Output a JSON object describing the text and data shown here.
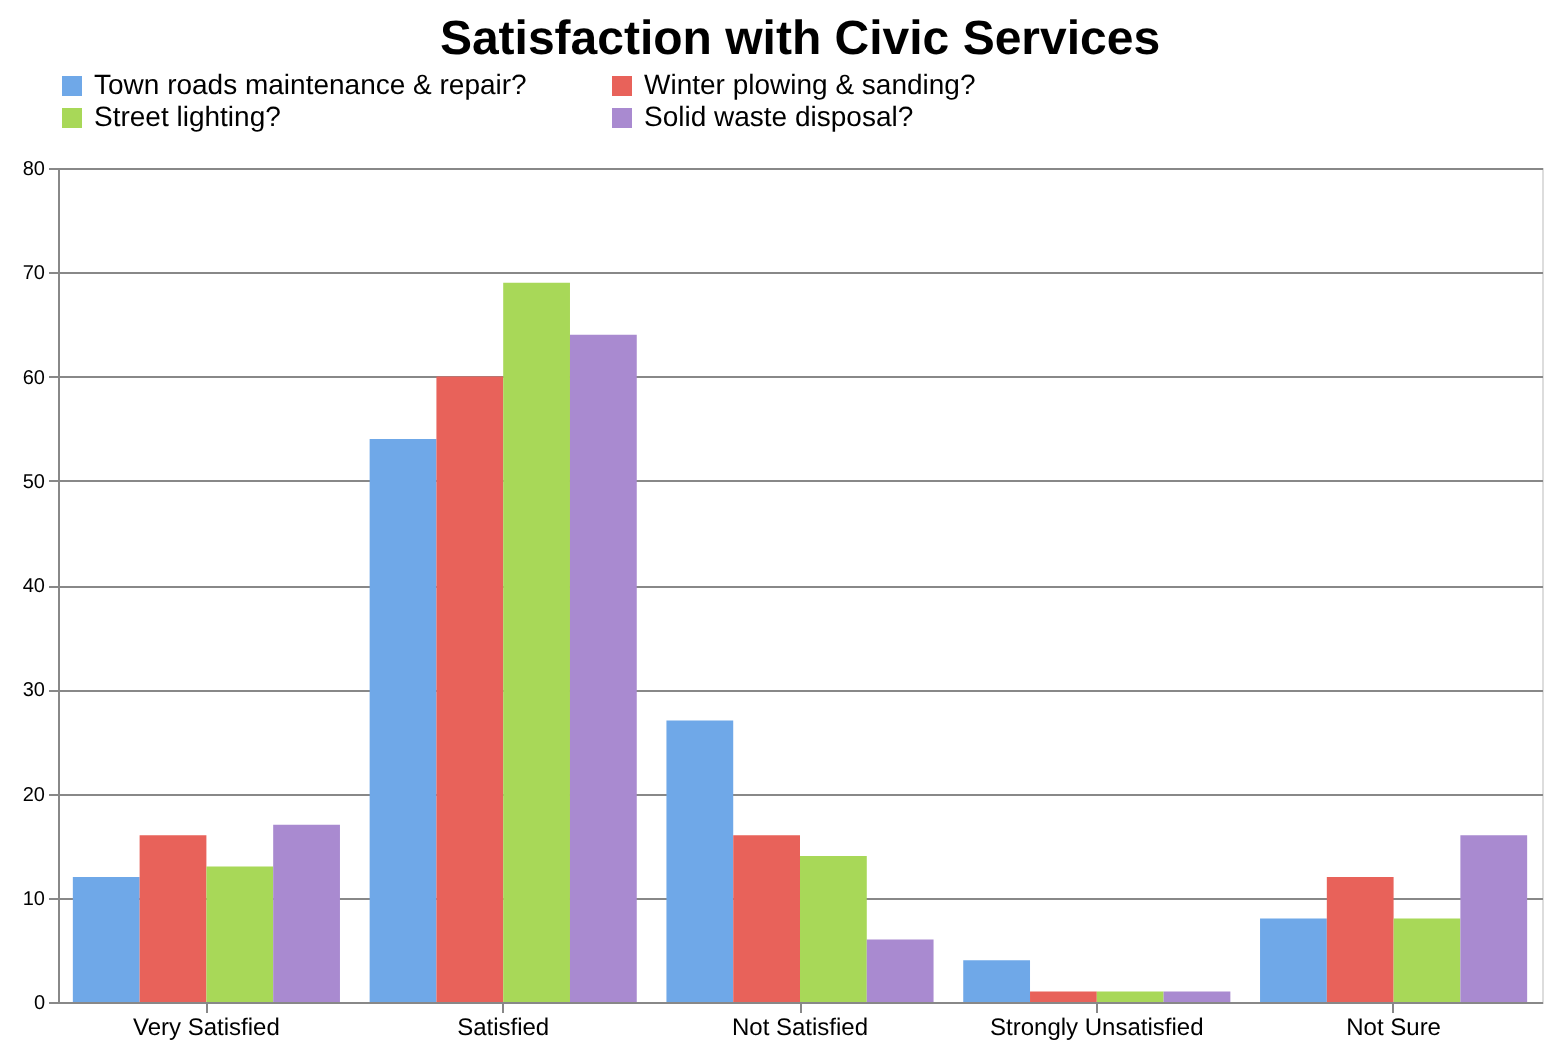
{
  "chart_data": {
    "type": "bar",
    "title": "Satisfaction with Civic Services",
    "categories": [
      "Very Satisfied",
      "Satisfied",
      "Not Satisfied",
      "Strongly Unsatisfied",
      "Not Sure"
    ],
    "series": [
      {
        "name": "Town roads maintenance & repair?",
        "color": "#6fa8e8",
        "values": [
          12,
          54,
          27,
          4,
          8
        ]
      },
      {
        "name": "Winter plowing & sanding?",
        "color": "#e8625a",
        "values": [
          16,
          60,
          16,
          1,
          12
        ]
      },
      {
        "name": "Street lighting?",
        "color": "#a8d858",
        "values": [
          13,
          69,
          14,
          1,
          8
        ]
      },
      {
        "name": "Solid waste disposal?",
        "color": "#a98ad0",
        "values": [
          17,
          64,
          6,
          1,
          16
        ]
      }
    ],
    "ylim": [
      0,
      80
    ],
    "yticks": [
      0,
      10,
      20,
      30,
      40,
      50,
      60,
      70,
      80
    ],
    "grid": "y",
    "legend": "top"
  }
}
